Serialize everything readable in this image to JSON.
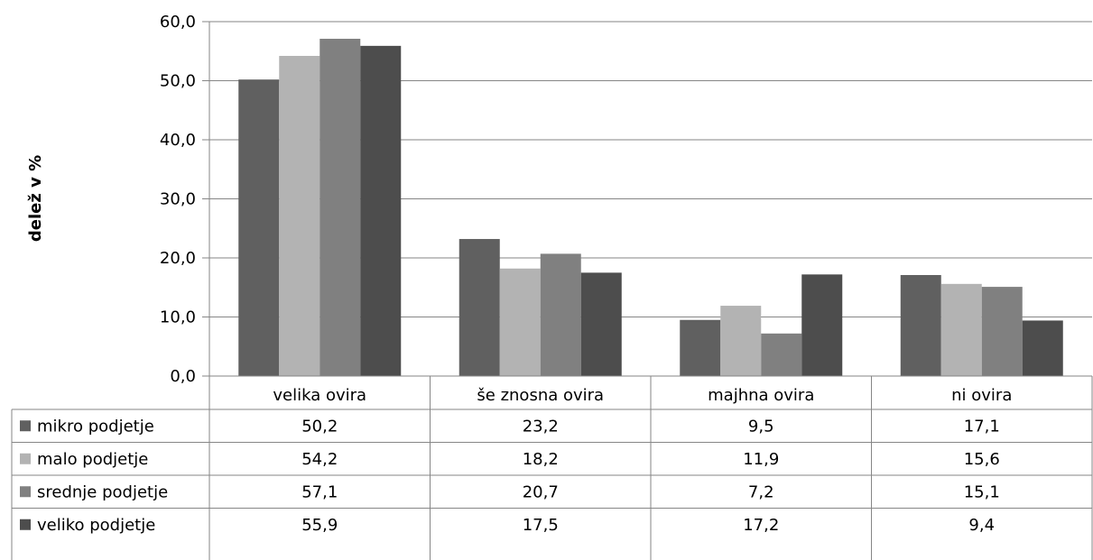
{
  "chart_data": {
    "type": "bar",
    "title": "",
    "xlabel": "",
    "ylabel": "delež v %",
    "ylim": [
      0,
      60
    ],
    "yticks": [
      "0,0",
      "10,0",
      "20,0",
      "30,0",
      "40,0",
      "50,0",
      "60,0"
    ],
    "grid": true,
    "legend": "data-table",
    "categories": [
      "velika ovira",
      "še znosna ovira",
      "majhna ovira",
      "ni ovira"
    ],
    "series": [
      {
        "name": "mikro podjetje",
        "color": "#606060",
        "values": [
          50.2,
          23.2,
          9.5,
          17.1
        ],
        "labels": [
          "50,2",
          "23,2",
          "9,5",
          "17,1"
        ]
      },
      {
        "name": "malo podjetje",
        "color": "#b3b3b3",
        "values": [
          54.2,
          18.2,
          11.9,
          15.6
        ],
        "labels": [
          "54,2",
          "18,2",
          "11,9",
          "15,6"
        ]
      },
      {
        "name": "srednje podjetje",
        "color": "#808080",
        "values": [
          57.1,
          20.7,
          7.2,
          15.1
        ],
        "labels": [
          "57,1",
          "20,7",
          "7,2",
          "15,1"
        ]
      },
      {
        "name": "veliko podjetje",
        "color": "#4d4d4d",
        "values": [
          55.9,
          17.5,
          17.2,
          9.4
        ],
        "labels": [
          "55,9",
          "17,5",
          "17,2",
          "9,4"
        ]
      }
    ]
  }
}
